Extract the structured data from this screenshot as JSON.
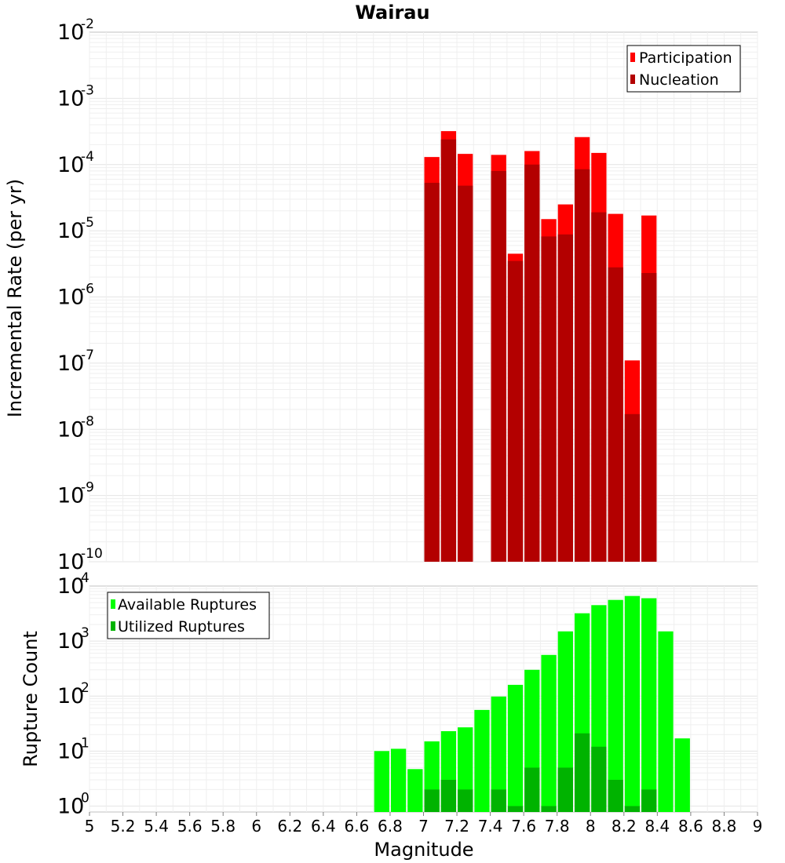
{
  "chart_data": [
    {
      "type": "bar",
      "title": "Wairau",
      "xlabel": "Magnitude",
      "ylabel": "Incremental Rate (per yr)",
      "yscale": "log",
      "ylim": [
        1e-10,
        0.01
      ],
      "xlim": [
        5,
        9
      ],
      "grid": true,
      "legend_position": "top-right",
      "series": [
        {
          "name": "Participation",
          "color": "#ff0000",
          "x": [
            7.0,
            7.1,
            7.2,
            7.4,
            7.5,
            7.6,
            7.7,
            7.8,
            7.9,
            8.0,
            8.1,
            8.2,
            8.3
          ],
          "values": [
            0.00013,
            0.00032,
            0.000145,
            0.00014,
            4.5e-06,
            0.00016,
            1.5e-05,
            2.5e-05,
            0.00026,
            0.00015,
            1.8e-05,
            1.1e-07,
            1.7e-05
          ]
        },
        {
          "name": "Nucleation",
          "color": "#b30000",
          "x": [
            7.0,
            7.1,
            7.2,
            7.4,
            7.5,
            7.6,
            7.7,
            7.8,
            7.9,
            8.0,
            8.1,
            8.2,
            8.3
          ],
          "values": [
            5.3e-05,
            0.00024,
            4.8e-05,
            8e-05,
            3.5e-06,
            0.0001,
            8.2e-06,
            8.8e-06,
            8.5e-05,
            1.9e-05,
            2.8e-06,
            1.7e-08,
            2.3e-06
          ]
        }
      ]
    },
    {
      "type": "bar",
      "xlabel": "Magnitude",
      "ylabel": "Rupture Count",
      "yscale": "log",
      "ylim": [
        0.78,
        10000
      ],
      "xlim": [
        5,
        9
      ],
      "xticks": [
        "5",
        "5.2",
        "5.4",
        "5.6",
        "5.8",
        "6",
        "6.2",
        "6.4",
        "6.6",
        "6.8",
        "7",
        "7.2",
        "7.4",
        "7.6",
        "7.8",
        "8",
        "8.2",
        "8.4",
        "8.6",
        "8.8",
        "9"
      ],
      "grid": true,
      "legend_position": "top-left",
      "series": [
        {
          "name": "Available Ruptures",
          "color": "#00ff00",
          "x": [
            6.7,
            6.8,
            6.9,
            7.0,
            7.1,
            7.2,
            7.3,
            7.4,
            7.5,
            7.6,
            7.7,
            7.8,
            7.9,
            8.0,
            8.1,
            8.2,
            8.3,
            8.4,
            8.5
          ],
          "values": [
            10,
            11,
            4.7,
            15,
            23,
            27,
            56,
            98,
            160,
            300,
            560,
            1500,
            3200,
            4500,
            5600,
            6600,
            6000,
            1500,
            17
          ]
        },
        {
          "name": "Utilized Ruptures",
          "color": "#00b300",
          "x": [
            7.0,
            7.1,
            7.2,
            7.4,
            7.5,
            7.6,
            7.7,
            7.8,
            7.9,
            8.0,
            8.1,
            8.2,
            8.3
          ],
          "values": [
            2,
            3,
            2,
            2,
            1,
            5,
            1,
            5,
            21,
            12,
            3,
            1,
            2
          ]
        }
      ]
    }
  ]
}
